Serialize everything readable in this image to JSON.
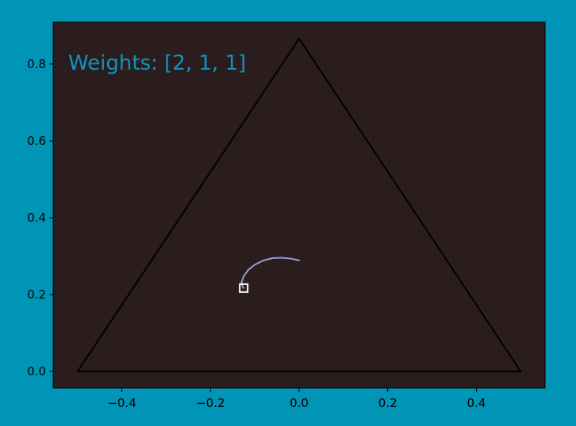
{
  "colors": {
    "figure_background": "#0095b6",
    "axes_background": "#2b1d1d",
    "triangle": "#000000",
    "trajectory": "#9e9bd6",
    "marker": "#ffffff",
    "annotation": "#0a96c0",
    "tick_text": "#000000"
  },
  "chart_data": {
    "type": "line",
    "title": "",
    "xlabel": "",
    "ylabel": "",
    "annotation": "Weights: [2, 1, 1]",
    "xlim": [
      -0.555,
      0.555
    ],
    "ylim": [
      -0.043,
      0.909
    ],
    "grid": false,
    "legend": "none",
    "x_ticks": [
      {
        "value": -0.4,
        "label": "−0.4"
      },
      {
        "value": -0.2,
        "label": "−0.2"
      },
      {
        "value": 0.0,
        "label": "0.0"
      },
      {
        "value": 0.2,
        "label": "0.2"
      },
      {
        "value": 0.4,
        "label": "0.4"
      }
    ],
    "y_ticks": [
      {
        "value": 0.0,
        "label": "0.0"
      },
      {
        "value": 0.2,
        "label": "0.2"
      },
      {
        "value": 0.4,
        "label": "0.4"
      },
      {
        "value": 0.6,
        "label": "0.6"
      },
      {
        "value": 0.8,
        "label": "0.8"
      }
    ],
    "triangle": [
      [
        -0.5,
        0.0
      ],
      [
        0.5,
        0.0
      ],
      [
        0.0,
        0.866
      ],
      [
        -0.5,
        0.0
      ]
    ],
    "trajectory": [
      [
        0.0,
        0.289
      ],
      [
        -0.02,
        0.294
      ],
      [
        -0.04,
        0.296
      ],
      [
        -0.06,
        0.295
      ],
      [
        -0.08,
        0.289
      ],
      [
        -0.1,
        0.278
      ],
      [
        -0.115,
        0.264
      ],
      [
        -0.125,
        0.248
      ],
      [
        -0.13,
        0.232
      ],
      [
        -0.128,
        0.222
      ],
      [
        -0.125,
        0.217
      ]
    ],
    "marker": {
      "x": -0.125,
      "y": 0.217,
      "shape": "square"
    }
  }
}
